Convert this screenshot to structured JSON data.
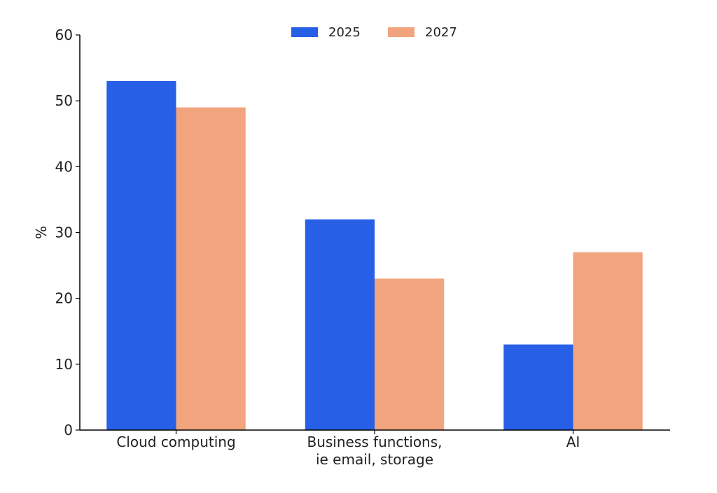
{
  "chart_data": {
    "type": "bar",
    "title": "",
    "xlabel": "",
    "ylabel": "%",
    "categories": [
      [
        "Cloud computing"
      ],
      [
        "Business functions,",
        "ie email, storage"
      ],
      [
        "AI"
      ]
    ],
    "series": [
      {
        "name": "2025",
        "values": [
          53,
          32,
          13
        ],
        "color": "#2760e6"
      },
      {
        "name": "2027",
        "values": [
          49,
          23,
          27
        ],
        "color": "#f2a47e"
      }
    ],
    "ylim": [
      0,
      60
    ],
    "yticks": [
      0,
      10,
      20,
      30,
      40,
      50,
      60
    ],
    "grid": false,
    "legend_position": "top-center"
  }
}
